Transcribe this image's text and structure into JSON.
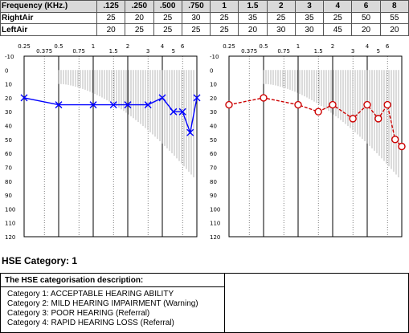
{
  "table": {
    "header_label": "Frequency (KHz.)",
    "frequencies": [
      ".125",
      ".250",
      ".500",
      ".750",
      "1",
      "1.5",
      "2",
      "3",
      "4",
      "6",
      "8"
    ],
    "rows": [
      {
        "label": "RightAir",
        "values": [
          "25",
          "20",
          "25",
          "30",
          "25",
          "35",
          "25",
          "35",
          "25",
          "50",
          "55"
        ]
      },
      {
        "label": "LeftAir",
        "values": [
          "20",
          "25",
          "25",
          "25",
          "25",
          "20",
          "30",
          "30",
          "45",
          "20",
          "20"
        ]
      }
    ]
  },
  "chart_data": [
    {
      "type": "line",
      "series": [
        {
          "name": "",
          "color": "#0000ff",
          "marker": "x",
          "x": [
            0.25,
            0.5,
            1,
            1.5,
            2,
            3,
            4,
            5,
            6,
            7,
            8
          ],
          "y": [
            20,
            25,
            25,
            25,
            25,
            25,
            20,
            30,
            30,
            45,
            20
          ]
        }
      ],
      "top_ticks": [
        {
          "x": 0.25,
          "text": "0.25"
        },
        {
          "x": 0.375,
          "text": "0.375"
        },
        {
          "x": 0.5,
          "text": "0.5"
        },
        {
          "x": 0.75,
          "text": "0.75"
        },
        {
          "x": 1,
          "text": "1"
        },
        {
          "x": 1.5,
          "text": "1.5"
        },
        {
          "x": 2,
          "text": "2"
        },
        {
          "x": 3,
          "text": "3"
        },
        {
          "x": 4,
          "text": "4"
        },
        {
          "x": 5,
          "text": "5"
        },
        {
          "x": 6,
          "text": "6"
        }
      ],
      "y_ticks": [
        "-10",
        "0",
        "10",
        "20",
        "30",
        "40",
        "50",
        "60",
        "70",
        "80",
        "90",
        "100",
        "110",
        "120"
      ],
      "ylim": [
        -10,
        120
      ],
      "grid": true,
      "reference_color": "#999999",
      "accent_color": "#0000ff"
    },
    {
      "type": "line",
      "series": [
        {
          "name": "",
          "color": "#cc0000",
          "marker": "o",
          "x": [
            0.25,
            0.5,
            1,
            1.5,
            2,
            3,
            4,
            5,
            6,
            7,
            8
          ],
          "y": [
            25,
            20,
            25,
            30,
            25,
            35,
            25,
            35,
            25,
            50,
            55
          ]
        }
      ],
      "top_ticks": [
        {
          "x": 0.25,
          "text": "0.25"
        },
        {
          "x": 0.375,
          "text": "0.375"
        },
        {
          "x": 0.5,
          "text": "0.5"
        },
        {
          "x": 0.75,
          "text": "0.75"
        },
        {
          "x": 1,
          "text": "1"
        },
        {
          "x": 1.5,
          "text": "1.5"
        },
        {
          "x": 2,
          "text": "2"
        },
        {
          "x": 3,
          "text": "3"
        },
        {
          "x": 4,
          "text": "4"
        },
        {
          "x": 5,
          "text": "5"
        },
        {
          "x": 6,
          "text": "6"
        }
      ],
      "y_ticks": [
        "-10",
        "0",
        "10",
        "20",
        "30",
        "40",
        "50",
        "60",
        "70",
        "80",
        "90",
        "100",
        "110",
        "120"
      ],
      "ylim": [
        -10,
        120
      ],
      "grid": true,
      "reference_color": "#999999",
      "accent_color": "#cc0000"
    }
  ],
  "hse": {
    "category_label": "HSE Category: 1",
    "desc_title": "The HSE categorisation description:",
    "lines": [
      "Category 1: ACCEPTABLE HEARING ABILITY",
      "Category 2: MILD HEARING IMPAIRMENT (Warning)",
      "Category 3: POOR HEARING  (Referral)",
      "Category 4: RAPID HEARING LOSS  (Referral)"
    ]
  }
}
